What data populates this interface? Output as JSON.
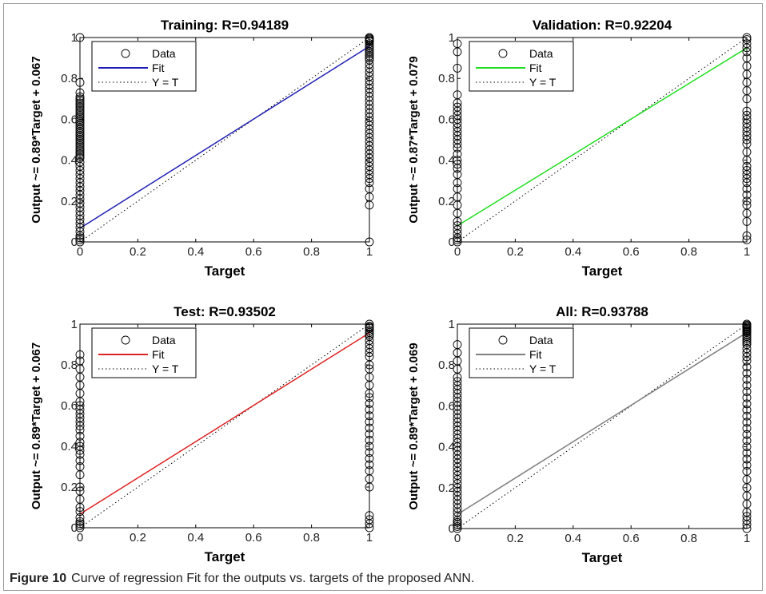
{
  "figure": {
    "label": "Figure 10",
    "caption": "Curve of regression Fit for the outputs vs. targets of the proposed ANN."
  },
  "chart_data": [
    {
      "type": "scatter",
      "title": "Training: R=0.94189",
      "xlabel": "Target",
      "ylabel": "Output ~= 0.89*Target + 0.067",
      "xlim": [
        0,
        1
      ],
      "ylim": [
        0,
        1
      ],
      "xticks": [
        "0",
        "0.2",
        "0.4",
        "0.6",
        "0.8",
        "1"
      ],
      "yticks": [
        "0",
        "0.2",
        "0.4",
        "0.6",
        "0.8",
        "1"
      ],
      "legend": [
        "Data",
        "Fit",
        "Y = T"
      ],
      "legend_position": "top-left",
      "fit_color": "#1f1fb4",
      "fit": {
        "slope": 0.89,
        "intercept": 0.067
      },
      "series": [
        {
          "name": "Data",
          "x": [
            0,
            0,
            0,
            0,
            0,
            0,
            0,
            0,
            0,
            0,
            0,
            0,
            0,
            0,
            0,
            0,
            0,
            0,
            0,
            0,
            0,
            0,
            0,
            0,
            0,
            0,
            0,
            0,
            0,
            0,
            0,
            0,
            0,
            0,
            0,
            0,
            0,
            0,
            0,
            0,
            0,
            0,
            0,
            0,
            0,
            0,
            0,
            0,
            0,
            0,
            0,
            0,
            0,
            0,
            0,
            0,
            1,
            1,
            1,
            1,
            1,
            1,
            1,
            1,
            1,
            1,
            1,
            1,
            1,
            1,
            1,
            1,
            1,
            1,
            1,
            1,
            1,
            1,
            1,
            1,
            1,
            1,
            1,
            1,
            1,
            1,
            1,
            1,
            1,
            1,
            1,
            1,
            1,
            1,
            1,
            1,
            1,
            1,
            1,
            1,
            1,
            1,
            1,
            1
          ],
          "y": [
            0,
            0.01,
            0.02,
            0.03,
            0.05,
            0.07,
            0.09,
            0.11,
            0.13,
            0.15,
            0.17,
            0.19,
            0.21,
            0.23,
            0.25,
            0.27,
            0.29,
            0.31,
            0.33,
            0.35,
            0.37,
            0.39,
            0.41,
            0.43,
            0.45,
            0.47,
            0.49,
            0.51,
            0.53,
            0.55,
            0.57,
            0.59,
            0.61,
            0.63,
            0.65,
            0.67,
            0.69,
            0.71,
            0.73,
            0.78,
            1,
            0.42,
            0.44,
            0.46,
            0.48,
            0.5,
            0.52,
            0.54,
            0.56,
            0.58,
            0.6,
            0.62,
            0.64,
            0.66,
            0.68,
            0.7,
            0,
            0.18,
            0.22,
            0.26,
            0.29,
            0.31,
            0.33,
            0.35,
            0.37,
            0.39,
            0.41,
            0.43,
            0.45,
            0.47,
            0.49,
            0.51,
            0.53,
            0.55,
            0.57,
            0.59,
            0.61,
            0.63,
            0.65,
            0.67,
            0.69,
            0.71,
            0.73,
            0.75,
            0.77,
            0.79,
            0.81,
            0.83,
            0.85,
            0.87,
            0.89,
            0.9,
            0.91,
            0.92,
            0.93,
            0.94,
            0.95,
            0.96,
            0.97,
            0.98,
            0.99,
            1,
            0.995,
            0.985
          ]
        }
      ]
    },
    {
      "type": "scatter",
      "title": "Validation: R=0.92204",
      "xlabel": "Target",
      "ylabel": "Output ~= 0.87*Target + 0.079",
      "xlim": [
        0,
        1
      ],
      "ylim": [
        0,
        1
      ],
      "xticks": [
        "0",
        "0.2",
        "0.4",
        "0.6",
        "0.8",
        "1"
      ],
      "yticks": [
        "0",
        "0.2",
        "0.4",
        "0.6",
        "0.8",
        "1"
      ],
      "legend": [
        "Data",
        "Fit",
        "Y = T"
      ],
      "legend_position": "top-left",
      "fit_color": "#22dd22",
      "fit": {
        "slope": 0.87,
        "intercept": 0.079
      },
      "series": [
        {
          "name": "Data",
          "x": [
            0,
            0,
            0,
            0,
            0,
            0,
            0,
            0,
            0,
            0,
            0,
            0,
            0,
            0,
            0,
            0,
            0,
            0,
            0,
            0,
            0,
            0,
            0,
            0,
            0,
            0,
            0,
            0,
            0,
            0,
            0,
            0,
            0,
            1,
            1,
            1,
            1,
            1,
            1,
            1,
            1,
            1,
            1,
            1,
            1,
            1,
            1,
            1,
            1,
            1,
            1,
            1,
            1,
            1,
            1,
            1,
            1,
            1,
            1,
            1,
            1,
            1,
            1,
            1,
            1,
            1,
            1,
            1
          ],
          "y": [
            0,
            0.01,
            0.02,
            0.04,
            0.06,
            0.08,
            0.1,
            0.14,
            0.18,
            0.22,
            0.26,
            0.29,
            0.33,
            0.36,
            0.38,
            0.4,
            0.43,
            0.46,
            0.48,
            0.5,
            0.52,
            0.54,
            0.56,
            0.58,
            0.6,
            0.62,
            0.64,
            0.66,
            0.68,
            0.72,
            0.85,
            0.93,
            0.97,
            0.01,
            0.03,
            0.1,
            0.14,
            0.18,
            0.2,
            0.23,
            0.26,
            0.29,
            0.31,
            0.33,
            0.35,
            0.37,
            0.4,
            0.44,
            0.48,
            0.5,
            0.52,
            0.54,
            0.56,
            0.58,
            0.6,
            0.62,
            0.64,
            0.7,
            0.74,
            0.78,
            0.82,
            0.86,
            0.9,
            0.93,
            0.95,
            0.97,
            0.99,
            1
          ]
        }
      ]
    },
    {
      "type": "scatter",
      "title": "Test: R=0.93502",
      "xlabel": "Target",
      "ylabel": "Output ~= 0.89*Target + 0.067",
      "xlim": [
        0,
        1
      ],
      "ylim": [
        0,
        1
      ],
      "xticks": [
        "0",
        "0.2",
        "0.4",
        "0.6",
        "0.8",
        "1"
      ],
      "yticks": [
        "0",
        "0.2",
        "0.4",
        "0.6",
        "0.8",
        "1"
      ],
      "legend": [
        "Data",
        "Fit",
        "Y = T"
      ],
      "legend_position": "top-left",
      "fit_color": "#dd2222",
      "fit": {
        "slope": 0.89,
        "intercept": 0.067
      },
      "series": [
        {
          "name": "Data",
          "x": [
            0,
            0,
            0,
            0,
            0,
            0,
            0,
            0,
            0,
            0,
            0,
            0,
            0,
            0,
            0,
            0,
            0,
            0,
            0,
            0,
            0,
            0,
            0,
            0,
            0,
            0,
            0,
            0,
            0,
            0,
            0,
            0,
            1,
            1,
            1,
            1,
            1,
            1,
            1,
            1,
            1,
            1,
            1,
            1,
            1,
            1,
            1,
            1,
            1,
            1,
            1,
            1,
            1,
            1,
            1,
            1,
            1,
            1,
            1,
            1,
            1,
            1,
            1,
            1,
            1,
            1,
            1,
            1,
            1
          ],
          "y": [
            0,
            0.01,
            0.02,
            0.03,
            0.05,
            0.08,
            0.1,
            0.14,
            0.18,
            0.2,
            0.26,
            0.3,
            0.33,
            0.36,
            0.38,
            0.4,
            0.42,
            0.45,
            0.48,
            0.5,
            0.52,
            0.54,
            0.56,
            0.58,
            0.6,
            0.62,
            0.66,
            0.7,
            0.74,
            0.78,
            0.82,
            0.85,
            0,
            0.02,
            0.04,
            0.06,
            0.2,
            0.24,
            0.28,
            0.31,
            0.34,
            0.37,
            0.4,
            0.43,
            0.46,
            0.49,
            0.52,
            0.55,
            0.58,
            0.61,
            0.64,
            0.66,
            0.7,
            0.74,
            0.78,
            0.8,
            0.84,
            0.86,
            0.88,
            0.9,
            0.92,
            0.94,
            0.95,
            0.96,
            0.97,
            0.98,
            0.99,
            1,
            0.985
          ]
        }
      ]
    },
    {
      "type": "scatter",
      "title": "All: R=0.93788",
      "xlabel": "Target",
      "ylabel": "Output ~= 0.89*Target + 0.069",
      "xlim": [
        0,
        1
      ],
      "ylim": [
        0,
        1
      ],
      "xticks": [
        "0",
        "0.2",
        "0.4",
        "0.6",
        "0.8",
        "1"
      ],
      "yticks": [
        "0",
        "0.2",
        "0.4",
        "0.6",
        "0.8",
        "1"
      ],
      "legend": [
        "Data",
        "Fit",
        "Y = T"
      ],
      "legend_position": "top-left",
      "fit_color": "#808080",
      "fit": {
        "slope": 0.89,
        "intercept": 0.069
      },
      "series": [
        {
          "name": "Data",
          "x": [
            0,
            0,
            0,
            0,
            0,
            0,
            0,
            0,
            0,
            0,
            0,
            0,
            0,
            0,
            0,
            0,
            0,
            0,
            0,
            0,
            0,
            0,
            0,
            0,
            0,
            0,
            0,
            0,
            0,
            0,
            0,
            0,
            0,
            0,
            0,
            0,
            0,
            0,
            0,
            0,
            0,
            0,
            0,
            0,
            1,
            1,
            1,
            1,
            1,
            1,
            1,
            1,
            1,
            1,
            1,
            1,
            1,
            1,
            1,
            1,
            1,
            1,
            1,
            1,
            1,
            1,
            1,
            1,
            1,
            1,
            1,
            1,
            1,
            1,
            1,
            1,
            1,
            1,
            1,
            1,
            1,
            1,
            1,
            1,
            1,
            1,
            1,
            1,
            1,
            1
          ],
          "y": [
            0,
            0.01,
            0.02,
            0.03,
            0.04,
            0.06,
            0.08,
            0.1,
            0.12,
            0.14,
            0.16,
            0.18,
            0.2,
            0.22,
            0.24,
            0.26,
            0.28,
            0.3,
            0.32,
            0.34,
            0.36,
            0.38,
            0.4,
            0.42,
            0.44,
            0.46,
            0.48,
            0.5,
            0.52,
            0.54,
            0.56,
            0.58,
            0.6,
            0.62,
            0.64,
            0.66,
            0.68,
            0.7,
            0.72,
            0.74,
            0.78,
            0.82,
            0.86,
            0.9,
            0,
            0.02,
            0.04,
            0.06,
            0.08,
            0.12,
            0.16,
            0.2,
            0.24,
            0.28,
            0.31,
            0.34,
            0.37,
            0.4,
            0.43,
            0.46,
            0.49,
            0.52,
            0.55,
            0.58,
            0.61,
            0.64,
            0.67,
            0.7,
            0.73,
            0.76,
            0.79,
            0.82,
            0.84,
            0.86,
            0.88,
            0.9,
            0.91,
            0.92,
            0.93,
            0.94,
            0.95,
            0.96,
            0.97,
            0.98,
            0.985,
            0.99,
            0.995,
            1,
            0.975,
            0.965
          ]
        }
      ]
    }
  ]
}
